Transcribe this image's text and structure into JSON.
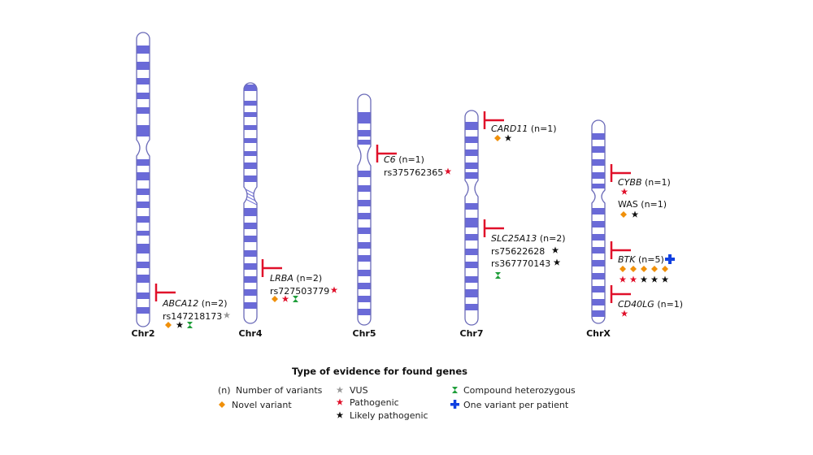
{
  "colors": {
    "band": "#6a6ad8",
    "outline": "#6a6ab8",
    "marker": "#e0102a",
    "novel": "#f0900a",
    "pathogenic": "#e0102a",
    "likely": "#111111",
    "vus": "#999999",
    "compound": "#1f9e3a",
    "per_patient": "#1040e0"
  },
  "chromosomes": [
    {
      "id": "chr2",
      "label": "Chr2"
    },
    {
      "id": "chr4",
      "label": "Chr4"
    },
    {
      "id": "chr5",
      "label": "Chr5"
    },
    {
      "id": "chr7",
      "label": "Chr7"
    },
    {
      "id": "chrx",
      "label": "ChrX"
    }
  ],
  "genes": [
    {
      "gene": "ABCA12",
      "count": "(n=2)",
      "italic": true,
      "variants": [
        "rs147218173"
      ]
    },
    {
      "gene": "LRBA",
      "count": "(n=2)",
      "italic": true,
      "variants": [
        "rs727503779"
      ]
    },
    {
      "gene": "C6",
      "count": "(n=1)",
      "italic": true,
      "variants": [
        "rs375762365"
      ]
    },
    {
      "gene": "CARD11",
      "count": "(n=1)",
      "italic": true,
      "variants": []
    },
    {
      "gene": "SLC25A13",
      "count": "(n=2)",
      "italic": true,
      "variants": [
        "rs75622628",
        "rs367770143"
      ]
    },
    {
      "gene": "CYBB",
      "count": "(n=1)",
      "italic": true,
      "variants": []
    },
    {
      "gene": "WAS",
      "count": "(n=1)",
      "italic": false,
      "variants": []
    },
    {
      "gene": "BTK",
      "count": "(n=5)",
      "italic": true,
      "variants": []
    },
    {
      "gene": "CD40LG",
      "count": "(n=1)",
      "italic": true,
      "variants": []
    }
  ],
  "legend": {
    "title": "Type of evidence for found genes",
    "items": [
      {
        "symbol": "(n)",
        "kind": "count",
        "label": "Number of variants"
      },
      {
        "symbol": "star",
        "kind": "vus",
        "label": "VUS"
      },
      {
        "symbol": "hourglass",
        "kind": "compound",
        "label": "Compound heterozygous"
      },
      {
        "symbol": "diamond",
        "kind": "novel",
        "label": "Novel variant"
      },
      {
        "symbol": "star",
        "kind": "pathogenic",
        "label": "Pathogenic"
      },
      {
        "symbol": "cross",
        "kind": "per_patient",
        "label": "One variant per patient"
      },
      {
        "symbol": "star",
        "kind": "likely",
        "label": "Likely pathogenic"
      }
    ]
  }
}
